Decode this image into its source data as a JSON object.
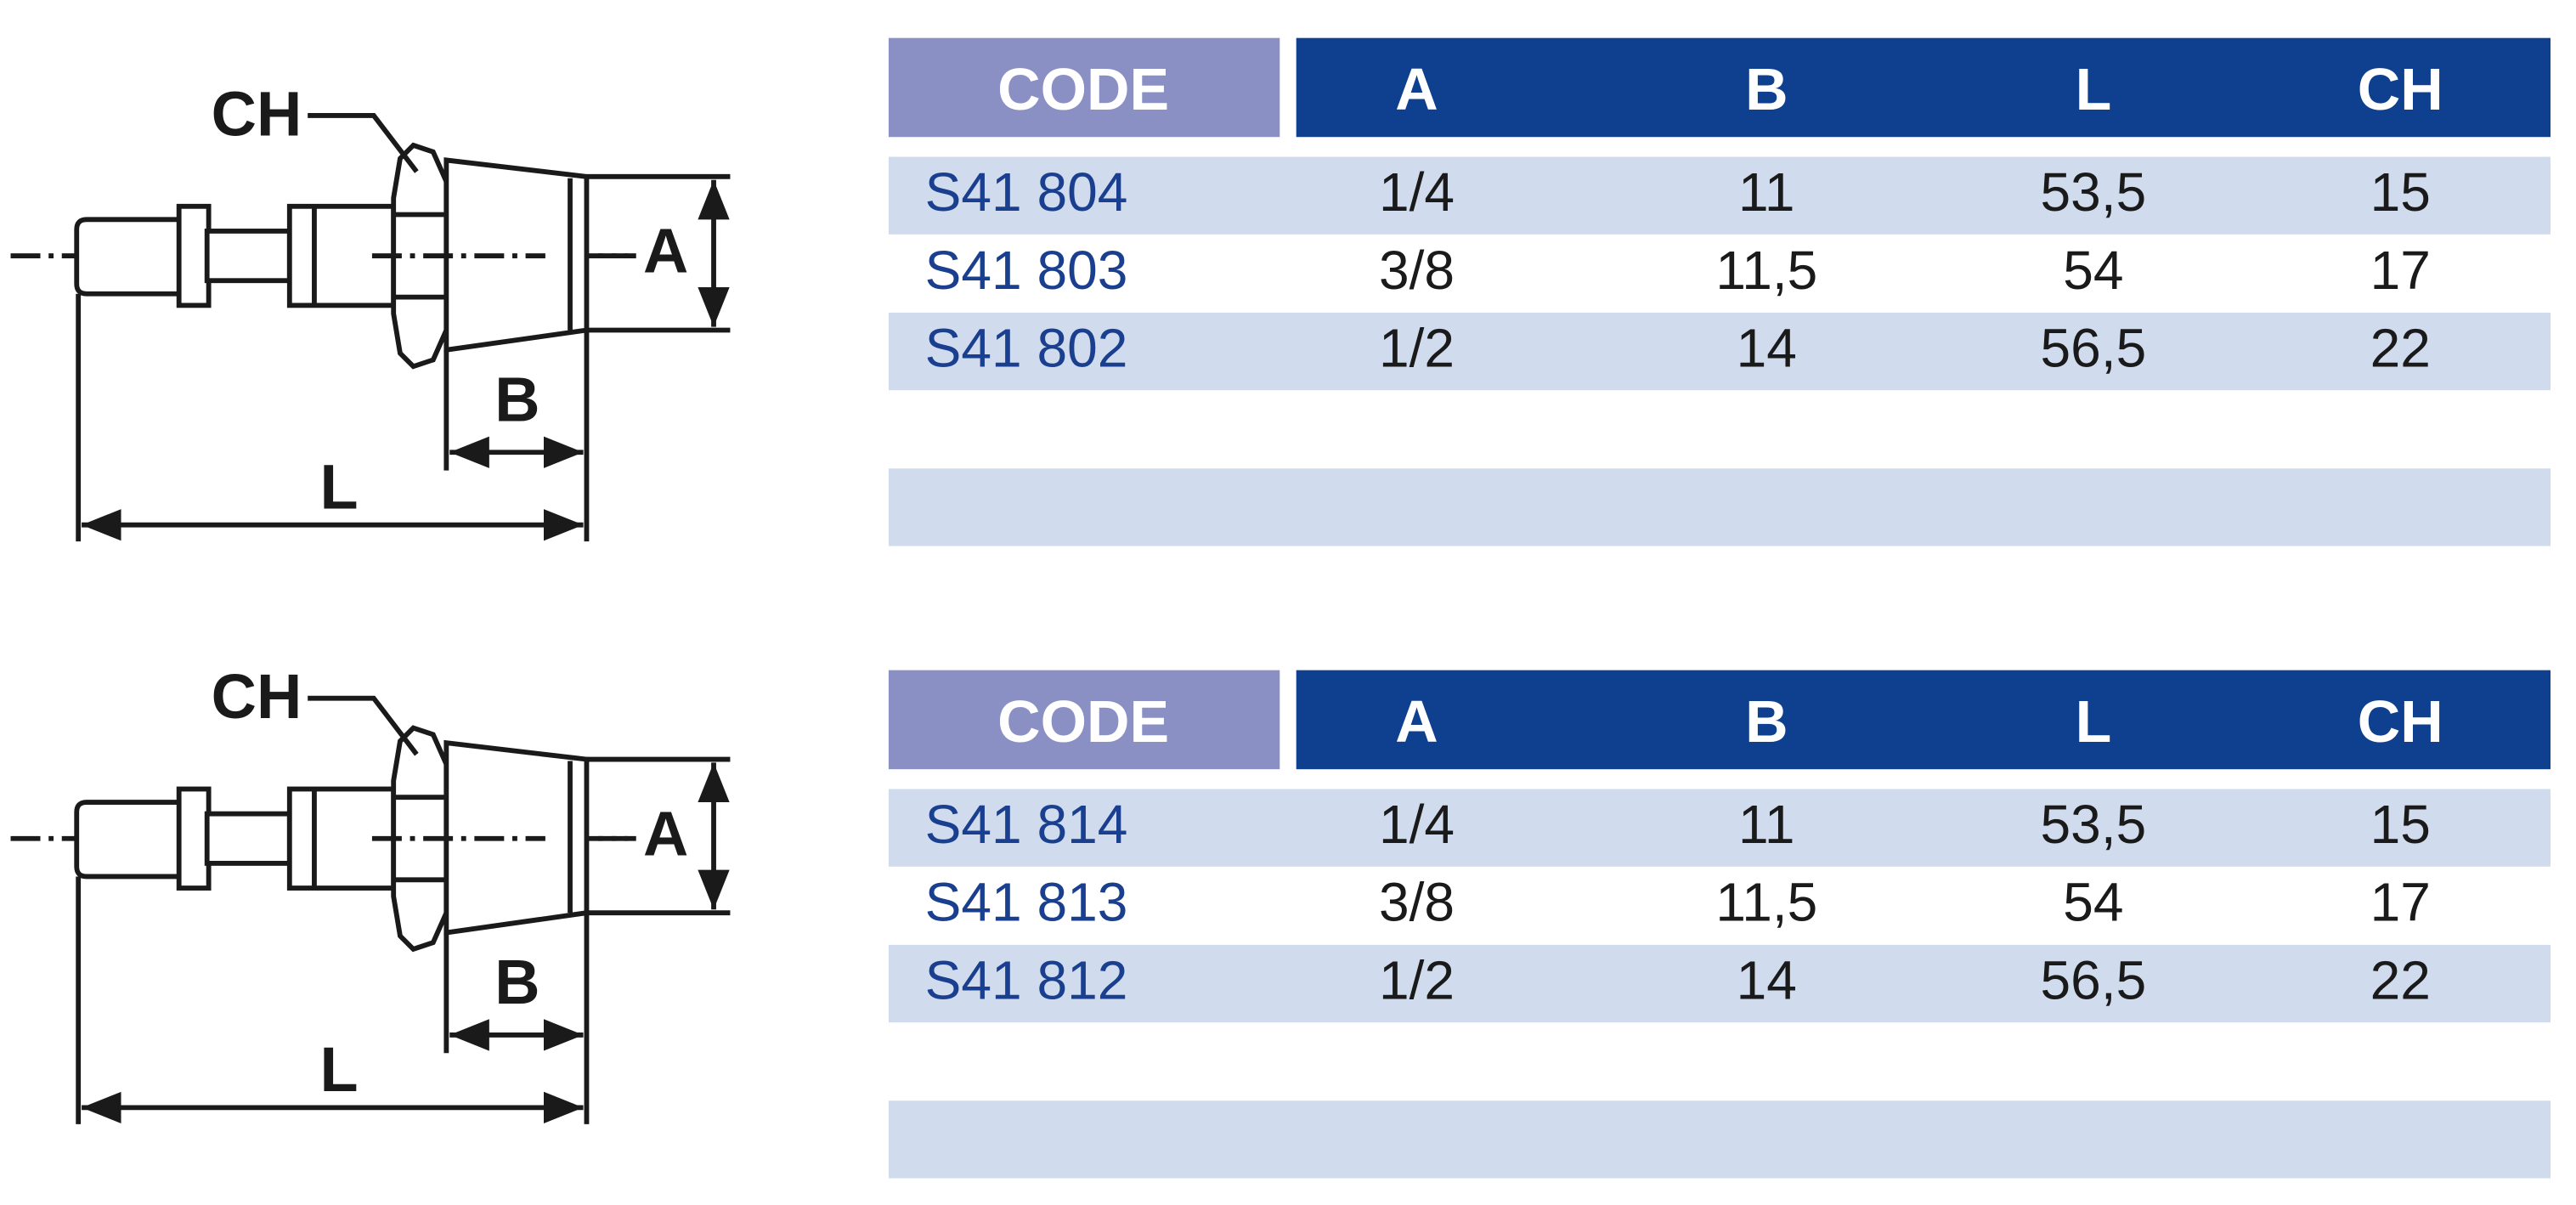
{
  "sections": [
    {
      "diagram": {
        "ch": "CH",
        "a": "A",
        "b": "B",
        "l": "L"
      },
      "table": {
        "header": [
          "CODE",
          "A",
          "B",
          "L",
          "CH"
        ],
        "rows": [
          [
            "S41 804",
            "1/4",
            "11",
            "53,5",
            "15"
          ],
          [
            "S41 803",
            "3/8",
            "11,5",
            "54",
            "17"
          ],
          [
            "S41 802",
            "1/2",
            "14",
            "56,5",
            "22"
          ]
        ]
      }
    },
    {
      "diagram": {
        "ch": "CH",
        "a": "A",
        "b": "B",
        "l": "L"
      },
      "table": {
        "header": [
          "CODE",
          "A",
          "B",
          "L",
          "CH"
        ],
        "rows": [
          [
            "S41 814",
            "1/4",
            "11",
            "53,5",
            "15"
          ],
          [
            "S41 813",
            "3/8",
            "11,5",
            "54",
            "17"
          ],
          [
            "S41 812",
            "1/2",
            "14",
            "56,5",
            "22"
          ]
        ]
      }
    }
  ]
}
